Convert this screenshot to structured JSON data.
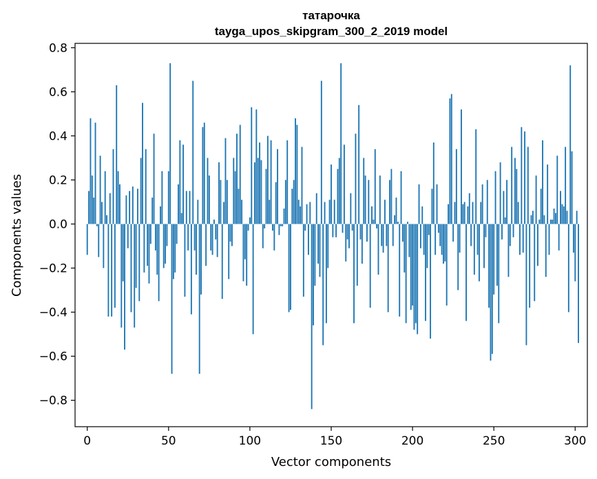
{
  "chart_data": {
    "type": "bar",
    "title_lines": [
      "татарочка",
      "tayga_upos_skipgram_300_2_2019 model"
    ],
    "xlabel": "Vector components",
    "ylabel": "Components values",
    "xlim": [
      -7.5,
      307.5
    ],
    "ylim": [
      -0.92,
      0.82
    ],
    "xticks": [
      0,
      50,
      100,
      150,
      200,
      250,
      300
    ],
    "yticks": [
      -0.8,
      -0.6,
      -0.4,
      -0.2,
      0.0,
      0.2,
      0.4,
      0.6,
      0.8
    ],
    "ytick_labels": [
      "−0.8",
      "−0.6",
      "−0.4",
      "−0.2",
      "0.0",
      "0.2",
      "0.4",
      "0.6",
      "0.8"
    ],
    "bar_color": "#1f77b4",
    "series": [
      {
        "name": "татарочка",
        "x_start": 0,
        "values": [
          -0.14,
          0.15,
          0.48,
          0.22,
          0.12,
          0.46,
          -0.01,
          -0.15,
          0.31,
          0.1,
          -0.2,
          0.24,
          0.04,
          -0.42,
          0.14,
          -0.42,
          0.34,
          -0.38,
          0.63,
          0.24,
          0.18,
          -0.47,
          -0.26,
          -0.57,
          0.13,
          -0.11,
          0.15,
          -0.4,
          0.17,
          -0.47,
          -0.29,
          0.16,
          -0.35,
          0.3,
          0.55,
          -0.22,
          0.34,
          -0.19,
          -0.27,
          -0.09,
          0.12,
          0.41,
          -0.12,
          -0.23,
          -0.35,
          0.08,
          0.24,
          -0.2,
          -0.18,
          -0.1,
          0.24,
          0.73,
          -0.68,
          -0.25,
          -0.22,
          -0.09,
          0.18,
          0.38,
          0.05,
          0.36,
          -0.33,
          0.15,
          -0.12,
          0.15,
          -0.41,
          0.65,
          -0.12,
          -0.23,
          0.11,
          -0.68,
          -0.32,
          0.44,
          0.46,
          -0.19,
          0.3,
          0.22,
          -0.12,
          -0.14,
          0.02,
          -0.07,
          -0.15,
          0.28,
          0.2,
          -0.34,
          0.1,
          0.39,
          0.2,
          -0.25,
          -0.08,
          -0.1,
          0.3,
          0.24,
          0.41,
          0.16,
          0.45,
          0.11,
          -0.26,
          -0.16,
          -0.28,
          -0.03,
          0.03,
          0.53,
          -0.5,
          0.28,
          0.52,
          0.3,
          0.37,
          0.29,
          -0.11,
          -0.02,
          0.25,
          0.4,
          0.11,
          0.38,
          -0.03,
          -0.12,
          0.19,
          0.34,
          -0.05,
          -0.01,
          -0.01,
          0.07,
          0.2,
          0.38,
          -0.4,
          -0.39,
          0.16,
          0.2,
          0.48,
          0.45,
          0.11,
          0.08,
          0.35,
          -0.33,
          -0.03,
          0.09,
          -0.14,
          0.1,
          -0.84,
          -0.46,
          -0.28,
          0.14,
          -0.18,
          -0.24,
          0.65,
          -0.55,
          0.1,
          -0.45,
          -0.2,
          0.11,
          0.27,
          -0.06,
          0.11,
          -0.06,
          0.25,
          0.3,
          0.73,
          -0.04,
          0.36,
          -0.17,
          -0.07,
          -0.11,
          0.14,
          -0.03,
          -0.45,
          0.41,
          -0.28,
          0.54,
          -0.07,
          -0.18,
          0.3,
          0.22,
          -0.08,
          0.2,
          -0.38,
          0.08,
          0.02,
          0.34,
          -0.02,
          -0.23,
          0.22,
          -0.1,
          -0.13,
          0.11,
          -0.1,
          -0.4,
          0.2,
          0.25,
          -0.1,
          0.04,
          0.12,
          0.01,
          -0.42,
          0.24,
          -0.08,
          -0.22,
          -0.45,
          0.01,
          -0.15,
          -0.39,
          -0.37,
          -0.48,
          -0.45,
          -0.5,
          0.18,
          -0.11,
          0.08,
          -0.14,
          -0.44,
          -0.2,
          -0.05,
          -0.52,
          0.16,
          0.37,
          -0.14,
          0.18,
          -0.04,
          -0.1,
          -0.14,
          -0.18,
          -0.17,
          -0.37,
          0.09,
          0.57,
          0.59,
          -0.08,
          0.1,
          0.34,
          -0.3,
          -0.13,
          0.52,
          0.09,
          0.1,
          -0.44,
          0.08,
          0.14,
          -0.1,
          0.1,
          -0.23,
          0.43,
          -0.14,
          -0.26,
          0.1,
          0.18,
          -0.2,
          -0.06,
          0.2,
          -0.38,
          -0.62,
          -0.59,
          -0.32,
          0.24,
          -0.28,
          -0.45,
          0.28,
          -0.07,
          0.15,
          0.03,
          0.2,
          -0.24,
          -0.1,
          0.35,
          -0.06,
          0.3,
          0.25,
          0.1,
          -0.14,
          0.44,
          -0.13,
          0.42,
          -0.55,
          0.35,
          -0.38,
          0.04,
          0.06,
          -0.35,
          0.22,
          -0.19,
          0.02,
          0.16,
          0.38,
          0.04,
          -0.24,
          0.27,
          -0.14,
          0.02,
          0.02,
          0.07,
          0.05,
          0.31,
          -0.12,
          0.15,
          0.09,
          0.08,
          0.35,
          0.06,
          -0.4,
          0.72,
          0.33,
          -0.13,
          -0.26,
          0.06,
          -0.54
        ]
      }
    ]
  }
}
